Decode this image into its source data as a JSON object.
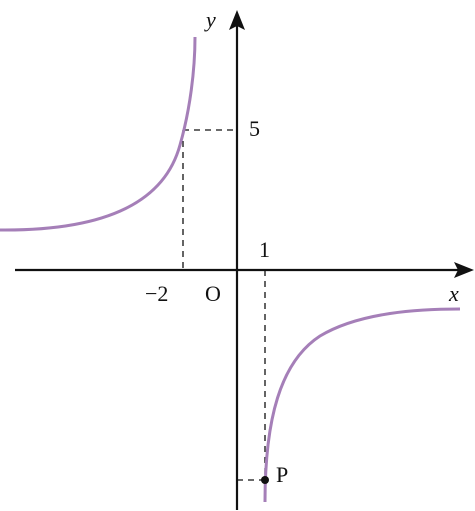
{
  "axes": {
    "x_label": "x",
    "y_label": "y",
    "origin_label": "O"
  },
  "labels": {
    "y_mark": "5",
    "x_mark_pos": "1",
    "x_mark_neg": "−2",
    "point": "P"
  }
}
